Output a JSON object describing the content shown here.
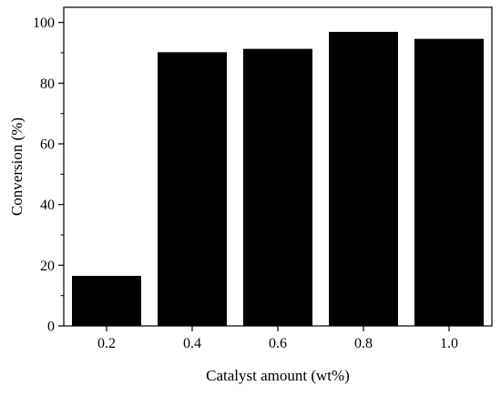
{
  "chart_data": {
    "type": "bar",
    "title": "",
    "xlabel": "Catalyst amount (wt%)",
    "ylabel": "Conversion (%)",
    "categories": [
      "0.2",
      "0.4",
      "0.6",
      "0.8",
      "1.0"
    ],
    "values": [
      16.5,
      90.2,
      91.3,
      96.9,
      94.6
    ],
    "ylim": [
      0,
      105
    ],
    "yticks": [
      0,
      20,
      40,
      60,
      80,
      100
    ],
    "bar_color": "#000000",
    "grid": false,
    "legend": "none"
  }
}
